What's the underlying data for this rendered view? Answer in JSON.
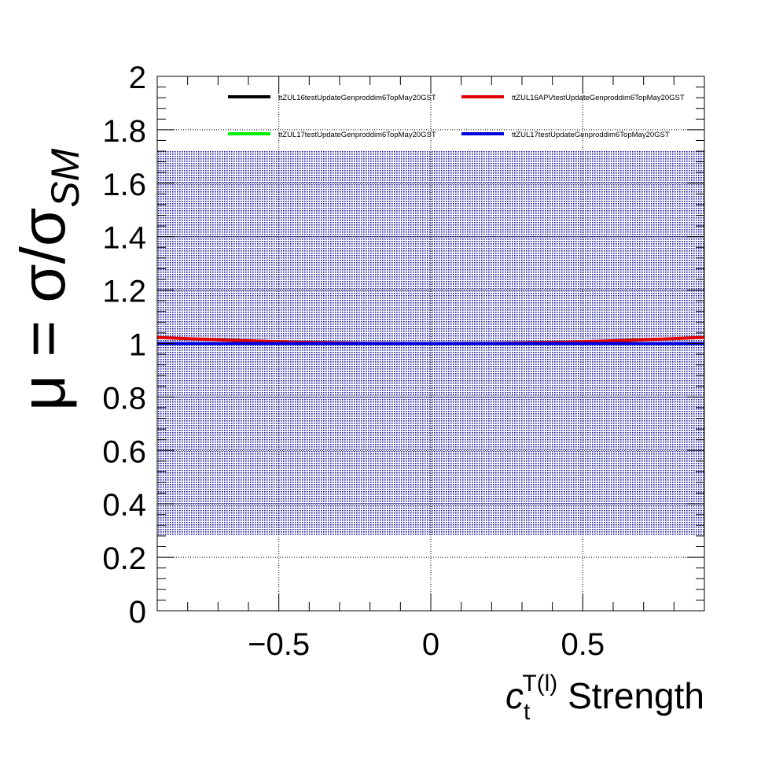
{
  "chart_data": {
    "type": "line",
    "xlabel": {
      "base": "c",
      "sub": "t",
      "sup": "T(l)",
      "suffix": " Strength"
    },
    "ylabel": {
      "main": "μ = σ/σ",
      "sub": "SM"
    },
    "xlim": [
      -0.9,
      0.9
    ],
    "ylim": [
      0,
      2
    ],
    "x_ticks": [
      -0.5,
      0,
      0.5
    ],
    "x_tick_labels": [
      "−0.5",
      "0",
      "0.5"
    ],
    "y_ticks": [
      0,
      0.2,
      0.4,
      0.6,
      0.8,
      1,
      1.2,
      1.4,
      1.6,
      1.8,
      2
    ],
    "y_tick_labels": [
      "0",
      "0.2",
      "0.4",
      "0.6",
      "0.8",
      "1",
      "1.2",
      "1.4",
      "1.6",
      "1.8",
      "2"
    ],
    "grid": true,
    "legend_position": "top",
    "band": {
      "x": [
        -0.9,
        0.9
      ],
      "y": [
        0.28,
        1.72
      ],
      "color": "#1a1aa0"
    },
    "series": [
      {
        "name": "ttZUL16testUpdateGenproddim6TopMay20GST",
        "color": "#000000",
        "x": [
          -0.9,
          -0.45,
          0,
          0.45,
          0.9
        ],
        "y": [
          1.0,
          1.0,
          1.0,
          1.0,
          1.0
        ]
      },
      {
        "name": "ttZUL16APVtestUpdateGenproddim6TopMay20GST",
        "color": "#e00000",
        "x": [
          -0.9,
          -0.675,
          -0.45,
          -0.225,
          0,
          0.225,
          0.45,
          0.675,
          0.9
        ],
        "y": [
          1.023,
          1.013,
          1.005,
          1.001,
          1.0,
          1.001,
          1.005,
          1.013,
          1.023
        ]
      },
      {
        "name": "ttZUL17testUpdateGenproddim6TopMay20GST",
        "color": "#00ee00",
        "x": [
          -0.9,
          -0.45,
          0,
          0.45,
          0.9
        ],
        "y": [
          1.0,
          1.0,
          1.0,
          1.0,
          1.0
        ]
      },
      {
        "name": "ttZUL17testUpdateGenproddim6TopMay20GST",
        "color": "#0000dd",
        "x": [
          -0.9,
          -0.45,
          0,
          0.45,
          0.9
        ],
        "y": [
          1.0,
          1.0,
          1.0,
          1.0,
          1.0
        ]
      }
    ]
  }
}
